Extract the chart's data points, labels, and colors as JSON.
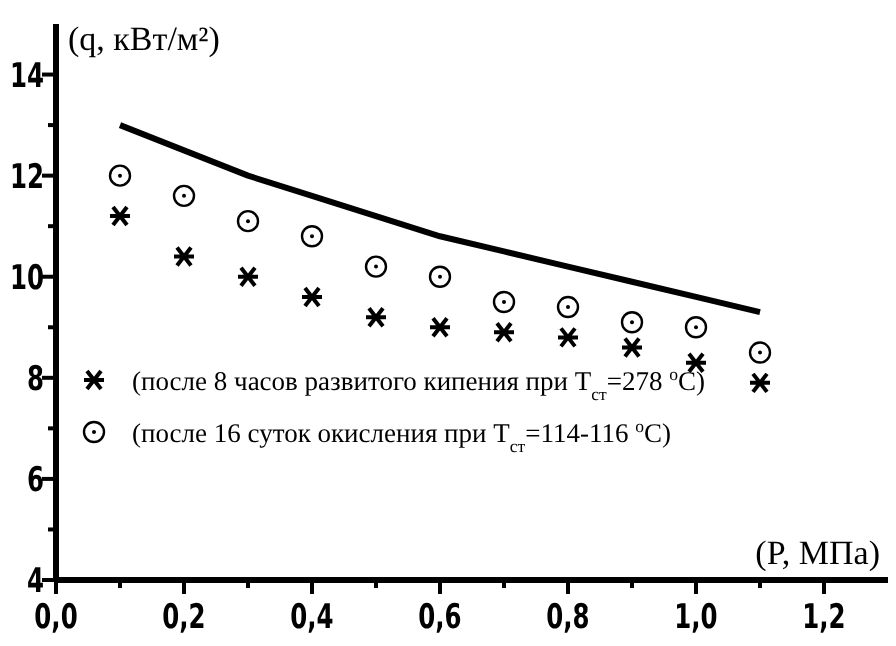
{
  "chart_data": {
    "type": "scatter",
    "xlabel": "(P, МПа)",
    "ylabel": "(q, кВт/м²)",
    "x": [
      0.1,
      0.2,
      0.3,
      0.4,
      0.5,
      0.6,
      0.7,
      0.8,
      0.9,
      1.0,
      1.1
    ],
    "series": [
      {
        "type": "line",
        "color": "#000000",
        "marker": "none",
        "line_style": "solid",
        "values": [
          13.0,
          12.5,
          12.0,
          11.6,
          11.2,
          10.8,
          10.5,
          10.2,
          9.9,
          9.6,
          9.3
        ]
      },
      {
        "name": "(после 8 часов развитого кипения при T$_{ст}$=278 $^{o}$C)",
        "color": "#000000",
        "marker": "cross",
        "values": [
          11.2,
          10.4,
          10.0,
          9.6,
          9.2,
          9.0,
          8.9,
          8.8,
          8.6,
          8.3,
          7.9
        ]
      },
      {
        "name": "(после 16 суток окисления при T$_{ст}$=114-116 $^{o}$C)",
        "color": "#000000",
        "marker": "circle",
        "values": [
          12.0,
          11.6,
          11.1,
          10.8,
          10.2,
          10.0,
          9.5,
          9.4,
          9.1,
          9.0,
          8.5
        ]
      }
    ],
    "xlim": [
      0,
      1.3
    ],
    "ylim": [
      4,
      15
    ],
    "xticks": [
      {
        "value": 0,
        "label": "0,0"
      },
      {
        "value": 0.1,
        "label": null
      },
      {
        "value": 0.2,
        "label": "0,2"
      },
      {
        "value": 0.3,
        "label": null
      },
      {
        "value": 0.4,
        "label": "0,4"
      },
      {
        "value": 0.5,
        "label": null
      },
      {
        "value": 0.6,
        "label": "0,6"
      },
      {
        "value": 0.7,
        "label": null
      },
      {
        "value": 0.8,
        "label": "0,8"
      },
      {
        "value": 0.9,
        "label": null
      },
      {
        "value": 1.0,
        "label": "1,0"
      },
      {
        "value": 1.1,
        "label": null
      },
      {
        "value": 1.2,
        "label": "1,2"
      }
    ],
    "yticks": [
      4,
      {
        "value": 5,
        "label": null
      },
      6,
      {
        "value": 7,
        "label": null
      },
      8,
      {
        "value": 9,
        "label": null
      },
      10,
      {
        "value": 11,
        "label": null
      },
      12,
      {
        "value": 13,
        "label": null
      },
      14
    ],
    "grid": false,
    "legend": "bottom left"
  }
}
